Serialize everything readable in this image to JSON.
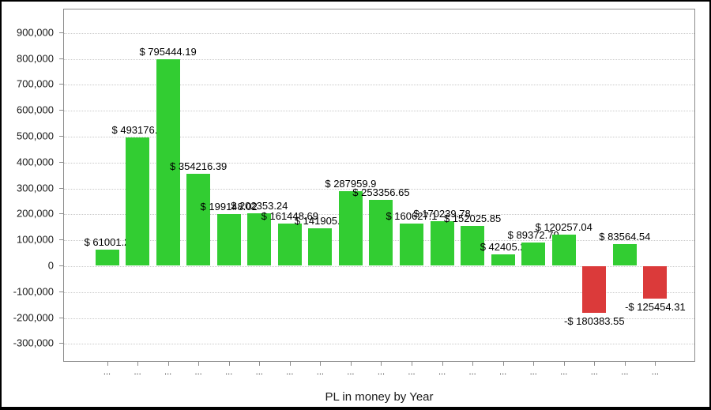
{
  "chart_data": {
    "type": "bar",
    "title": "PL in money by Year",
    "xlabel": "PL in money by Year",
    "ylabel": "",
    "ylim": [
      -380000,
      990000
    ],
    "grid": "horizontal-dotted",
    "legend": "none",
    "x_tick_display": "...",
    "y_ticks": {
      "values": [
        900000,
        800000,
        700000,
        600000,
        500000,
        400000,
        300000,
        200000,
        100000,
        0,
        -100000,
        -200000,
        -300000
      ],
      "labels": [
        "900,000",
        "800,000",
        "700,000",
        "600,000",
        "500,000",
        "400,000",
        "300,000",
        "200,000",
        "100,000",
        "0",
        "-100,000",
        "-200,000",
        "-300,000"
      ]
    },
    "colors": {
      "positive": "#32CD32",
      "negative": "#DB3A3A"
    },
    "categories": [
      "...",
      "...",
      "...",
      "...",
      "...",
      "...",
      "...",
      "...",
      "...",
      "...",
      "...",
      "...",
      "...",
      "...",
      "...",
      "...",
      "...",
      "...",
      "..."
    ],
    "bars": [
      {
        "label": "$ 61001.2",
        "value": 61001.2
      },
      {
        "label": "$ 493176.1",
        "value": 493176.1
      },
      {
        "label": "$ 795444.19",
        "value": 795444.19
      },
      {
        "label": "$ 354216.39",
        "value": 354216.39
      },
      {
        "label": "$ 199148.02",
        "value": 199148.02
      },
      {
        "label": "$ 202353.24",
        "value": 202353.24
      },
      {
        "label": "$ 161448.69",
        "value": 161448.69
      },
      {
        "label": "$ 141905.5",
        "value": 141905.5
      },
      {
        "label": "$ 287959.9",
        "value": 287959.9
      },
      {
        "label": "$ 253356.65",
        "value": 253356.65
      },
      {
        "label": "$ 160627.1",
        "value": 160627.1
      },
      {
        "label": "$ 170239.78",
        "value": 170239.78
      },
      {
        "label": "$ 152025.85",
        "value": 152025.85
      },
      {
        "label": "$ 42405.2",
        "value": 42405.2
      },
      {
        "label": "$ 89372.79",
        "value": 89372.79
      },
      {
        "label": "$ 120257.04",
        "value": 120257.04
      },
      {
        "label": "-$ 180383.55",
        "value": -180383.55
      },
      {
        "label": "$ 83564.54",
        "value": 83564.54
      },
      {
        "label": "-$ 125454.31",
        "value": -125454.31
      }
    ]
  }
}
